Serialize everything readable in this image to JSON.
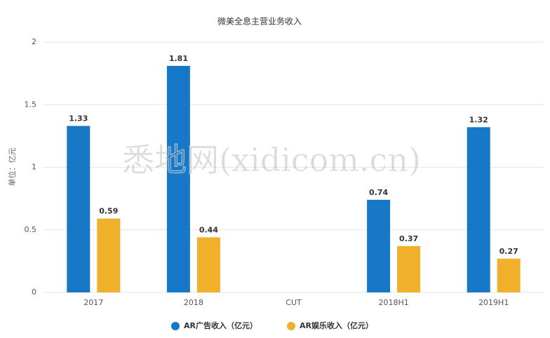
{
  "chart_data": {
    "type": "bar",
    "title": "微美全息主营业务收入",
    "y_label": "单位：亿元",
    "watermark": "悉地网(xidicom.cn)",
    "categories": [
      "2017",
      "2018",
      "CUT",
      "2018H1",
      "2019H1"
    ],
    "series": [
      {
        "name": "AR广告收入（亿元）",
        "color": "#1878c8",
        "values": [
          1.33,
          1.81,
          null,
          0.74,
          1.32
        ]
      },
      {
        "name": "AR娱乐收入（亿元）",
        "color": "#f0b02a",
        "values": [
          0.59,
          0.44,
          null,
          0.37,
          0.27
        ]
      }
    ],
    "ylim": [
      0,
      2
    ],
    "yticks": [
      0,
      0.5,
      1,
      1.5,
      2
    ],
    "grid": true
  }
}
